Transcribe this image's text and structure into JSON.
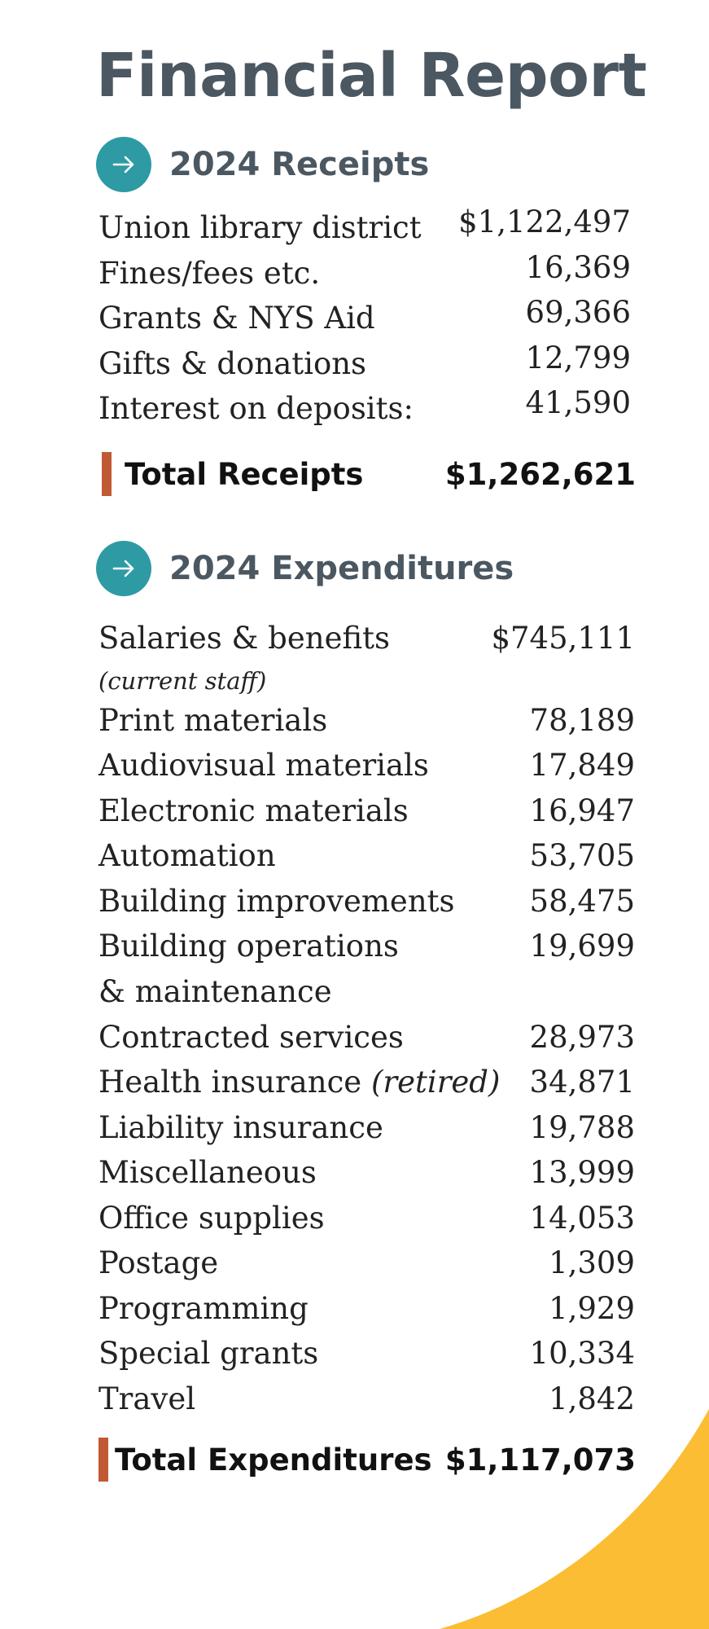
{
  "title": "Financial Report",
  "colors": {
    "heading": "#4b5761",
    "circle": "#2e9aa4",
    "accent_bar": "#c05a34",
    "corner": "#fbbd33"
  },
  "receipts": {
    "heading": "2024 Receipts",
    "icon": "arrow-right-icon",
    "items": [
      {
        "label": "Union library district",
        "value": "$1,122,497"
      },
      {
        "label": "Fines/fees etc.",
        "value": "16,369"
      },
      {
        "label": "Grants & NYS Aid",
        "value": "69,366"
      },
      {
        "label": "Gifts & donations",
        "value": "12,799"
      },
      {
        "label": "Interest on deposits:",
        "value": "41,590"
      }
    ],
    "total": {
      "label": "Total Receipts",
      "value": "$1,262,621"
    }
  },
  "expenditures": {
    "heading": "2024 Expenditures",
    "icon": "arrow-right-icon",
    "items": [
      {
        "label": "Salaries & benefits",
        "note": "(current staff)",
        "value": "$745,111"
      },
      {
        "label": "Print materials",
        "value": "78,189"
      },
      {
        "label": "Audiovisual materials",
        "value": "17,849"
      },
      {
        "label": "Electronic materials",
        "value": "16,947"
      },
      {
        "label": "Automation",
        "value": "53,705"
      },
      {
        "label": "Building improvements",
        "value": "58,475"
      },
      {
        "label": "Building operations & maintenance",
        "value": "19,699"
      },
      {
        "label": "Contracted services",
        "value": "28,973"
      },
      {
        "label": "Health insurance",
        "note": "(retired)",
        "value": "34,871"
      },
      {
        "label": "Liability insurance",
        "value": "19,788"
      },
      {
        "label": "Miscellaneous",
        "value": "13,999"
      },
      {
        "label": "Office supplies",
        "value": "14,053"
      },
      {
        "label": "Postage",
        "value": "1,309"
      },
      {
        "label": "Programming",
        "value": "1,929"
      },
      {
        "label": "Special grants",
        "value": "10,334"
      },
      {
        "label": "Travel",
        "value": "1,842"
      }
    ],
    "total": {
      "label": "Total Expenditures",
      "value": "$1,117,073"
    }
  }
}
